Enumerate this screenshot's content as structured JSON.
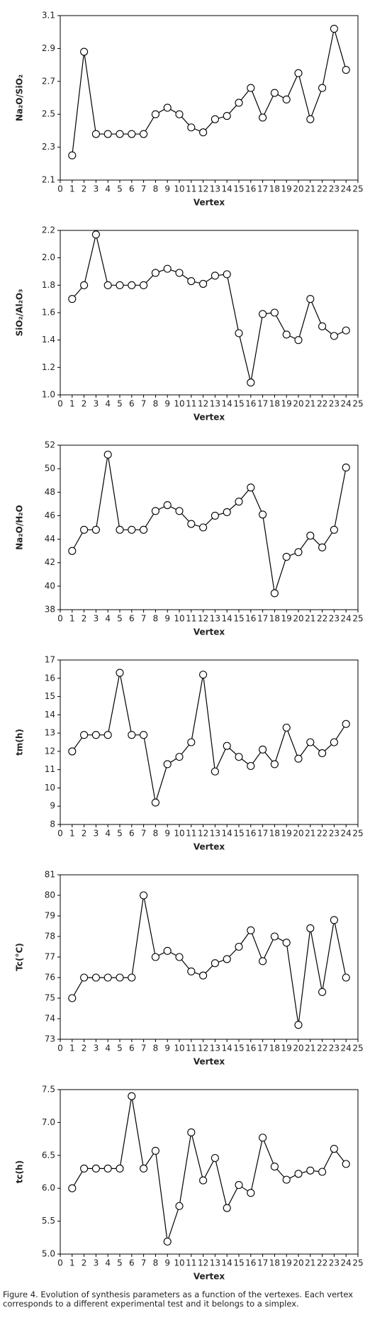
{
  "chart_data": [
    {
      "type": "line",
      "ylabel": "Na₂O/SiO₂",
      "xlabel": "Vertex",
      "x": [
        1,
        2,
        3,
        4,
        5,
        6,
        7,
        8,
        9,
        10,
        11,
        12,
        13,
        14,
        15,
        16,
        17,
        18,
        19,
        20,
        21,
        22,
        23,
        24
      ],
      "values": [
        2.25,
        2.88,
        2.38,
        2.38,
        2.38,
        2.38,
        2.38,
        2.5,
        2.54,
        2.5,
        2.42,
        2.39,
        2.47,
        2.49,
        2.57,
        2.66,
        2.48,
        2.63,
        2.59,
        2.75,
        2.47,
        2.66,
        3.02,
        2.77
      ],
      "xlim": [
        0,
        25
      ],
      "xticks": [
        0,
        1,
        2,
        3,
        4,
        5,
        6,
        7,
        8,
        9,
        10,
        11,
        12,
        13,
        14,
        15,
        16,
        17,
        18,
        19,
        20,
        21,
        22,
        23,
        24,
        25
      ],
      "ylim": [
        2.1,
        3.1
      ],
      "yticks": [
        2.1,
        2.3,
        2.5,
        2.7,
        2.9,
        3.1
      ],
      "color": "#000000"
    },
    {
      "type": "line",
      "ylabel": "SiO₂/Al₂O₃",
      "xlabel": "Vertex",
      "x": [
        1,
        2,
        3,
        4,
        5,
        6,
        7,
        8,
        9,
        10,
        11,
        12,
        13,
        14,
        15,
        16,
        17,
        18,
        19,
        20,
        21,
        22,
        23,
        24
      ],
      "values": [
        1.7,
        1.8,
        2.17,
        1.8,
        1.8,
        1.8,
        1.8,
        1.89,
        1.92,
        1.89,
        1.83,
        1.81,
        1.87,
        1.88,
        1.45,
        1.09,
        1.59,
        1.6,
        1.44,
        1.4,
        1.7,
        1.5,
        1.43,
        1.47
      ],
      "xlim": [
        0,
        25
      ],
      "xticks": [
        0,
        1,
        2,
        3,
        4,
        5,
        6,
        7,
        8,
        9,
        10,
        11,
        12,
        13,
        14,
        15,
        16,
        17,
        18,
        19,
        20,
        21,
        22,
        23,
        24,
        25
      ],
      "ylim": [
        1.0,
        2.2
      ],
      "yticks": [
        {
          "value": 1.0,
          "label": "1.0"
        },
        1.2,
        1.4,
        1.6,
        1.8,
        {
          "value": 2.0,
          "label": "2.0"
        },
        2.2
      ],
      "color": "#000000"
    },
    {
      "type": "line",
      "ylabel": "Na₂O/H₂O",
      "xlabel": "Vertex",
      "x": [
        1,
        2,
        3,
        4,
        5,
        6,
        7,
        8,
        9,
        10,
        11,
        12,
        13,
        14,
        15,
        16,
        17,
        18,
        19,
        20,
        21,
        22,
        23,
        24
      ],
      "values": [
        43.0,
        44.8,
        44.8,
        51.2,
        44.8,
        44.8,
        44.8,
        46.4,
        46.9,
        46.4,
        45.3,
        45.0,
        46.0,
        46.3,
        47.2,
        48.4,
        46.1,
        39.4,
        42.5,
        42.9,
        44.3,
        43.3,
        44.8,
        50.1
      ],
      "xlim": [
        0,
        25
      ],
      "xticks": [
        0,
        1,
        2,
        3,
        4,
        5,
        6,
        7,
        8,
        9,
        10,
        11,
        12,
        13,
        14,
        15,
        16,
        17,
        18,
        19,
        20,
        21,
        22,
        23,
        24,
        25
      ],
      "ylim": [
        38,
        52
      ],
      "yticks": [
        38,
        40,
        42,
        44,
        46,
        48,
        50,
        52
      ],
      "color": "#000000"
    },
    {
      "type": "line",
      "ylabel": "tm(h)",
      "xlabel": "Vertex",
      "x": [
        1,
        2,
        3,
        4,
        5,
        6,
        7,
        8,
        9,
        10,
        11,
        12,
        13,
        14,
        15,
        16,
        17,
        18,
        19,
        20,
        21,
        22,
        23,
        24
      ],
      "values": [
        12.0,
        12.9,
        12.9,
        12.9,
        16.3,
        12.9,
        12.9,
        9.2,
        11.3,
        11.7,
        12.5,
        16.2,
        10.9,
        12.3,
        11.7,
        11.2,
        12.1,
        11.3,
        13.3,
        11.6,
        12.5,
        11.9,
        12.5,
        13.5
      ],
      "xlim": [
        0,
        25
      ],
      "xticks": [
        0,
        1,
        2,
        3,
        4,
        5,
        6,
        7,
        8,
        9,
        10,
        11,
        12,
        13,
        14,
        15,
        16,
        17,
        18,
        19,
        20,
        21,
        22,
        23,
        24,
        25
      ],
      "ylim": [
        8,
        17
      ],
      "yticks": [
        8,
        9,
        10,
        11,
        12,
        13,
        14,
        15,
        16,
        17
      ],
      "color": "#000000"
    },
    {
      "type": "line",
      "ylabel": "Tc(°C)",
      "xlabel": "Vertex",
      "x": [
        1,
        2,
        3,
        4,
        5,
        6,
        7,
        8,
        9,
        10,
        11,
        12,
        13,
        14,
        15,
        16,
        17,
        18,
        19,
        20,
        21,
        22,
        23,
        24
      ],
      "values": [
        75.0,
        76.0,
        76.0,
        76.0,
        76.0,
        76.0,
        80.0,
        77.0,
        77.3,
        77.0,
        76.3,
        76.1,
        76.7,
        76.9,
        77.5,
        78.3,
        76.8,
        78.0,
        77.7,
        73.7,
        78.4,
        75.3,
        78.8,
        76.0
      ],
      "xlim": [
        0,
        25
      ],
      "xticks": [
        0,
        1,
        2,
        3,
        4,
        5,
        6,
        7,
        8,
        9,
        10,
        11,
        12,
        13,
        14,
        15,
        16,
        17,
        18,
        19,
        20,
        21,
        22,
        23,
        24,
        25
      ],
      "ylim": [
        73,
        81
      ],
      "yticks": [
        73,
        74,
        75,
        76,
        77,
        78,
        79,
        80,
        81
      ],
      "color": "#000000"
    },
    {
      "type": "line",
      "ylabel": "tc(h)",
      "xlabel": "Vertex",
      "x": [
        1,
        2,
        3,
        4,
        5,
        6,
        7,
        8,
        9,
        10,
        11,
        12,
        13,
        14,
        15,
        16,
        17,
        18,
        19,
        20,
        21,
        22,
        23,
        24
      ],
      "values": [
        6.0,
        6.3,
        6.3,
        6.3,
        6.3,
        7.4,
        6.3,
        6.57,
        5.19,
        5.73,
        6.85,
        6.12,
        6.46,
        5.7,
        6.05,
        5.93,
        6.77,
        6.33,
        6.13,
        6.22,
        6.27,
        6.25,
        6.6,
        6.37
      ],
      "xlim": [
        0,
        25
      ],
      "xticks": [
        0,
        1,
        2,
        3,
        4,
        5,
        6,
        7,
        8,
        9,
        10,
        11,
        12,
        13,
        14,
        15,
        16,
        17,
        18,
        19,
        20,
        21,
        22,
        23,
        24,
        25
      ],
      "ylim": [
        5.0,
        7.5
      ],
      "yticks": [
        {
          "value": 5.0,
          "label": "5.0"
        },
        5.5,
        {
          "value": 6.0,
          "label": "6.0"
        },
        6.5,
        {
          "value": 7.0,
          "label": "7.0"
        },
        7.5
      ],
      "color": "#000000"
    }
  ],
  "caption": "Figure 4. Evolution of synthesis parameters as a function of the vertexes. Each vertex corresponds to a different experimental test and it belongs to a simplex."
}
